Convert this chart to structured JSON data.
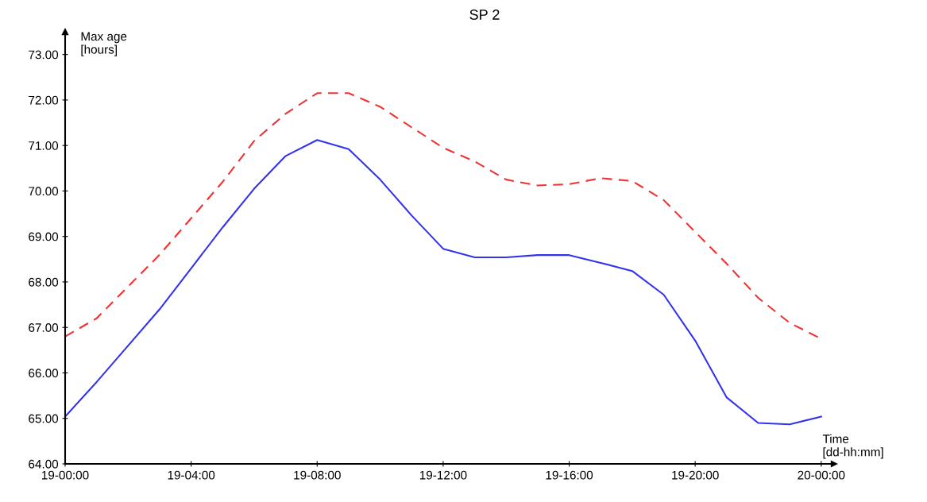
{
  "chart_data": {
    "type": "line",
    "title": "SP 2",
    "xlabel": "Time\n[dd-hh:mm]",
    "ylabel": "Max age\n[hours]",
    "categories": [
      "19-00:00",
      null,
      null,
      null,
      "19-04:00",
      null,
      null,
      null,
      "19-08:00",
      null,
      null,
      null,
      "19-12:00",
      null,
      null,
      null,
      "19-16:00",
      null,
      null,
      null,
      "19-20:00",
      null,
      null,
      null,
      "20-00:00"
    ],
    "series": [
      {
        "color": "#3333ee",
        "line_style": "solid",
        "values": [
          65.04,
          65.8,
          66.6,
          67.4,
          68.3,
          69.2,
          70.05,
          70.77,
          71.12,
          70.92,
          70.25,
          69.46,
          68.73,
          68.54,
          68.54,
          68.59,
          68.59,
          68.42,
          68.24,
          67.72,
          66.71,
          65.46,
          64.9,
          64.87,
          65.04
        ]
      },
      {
        "color": "#ee3333",
        "line_style": "dashed",
        "values": [
          66.8,
          67.2,
          67.9,
          68.6,
          69.4,
          70.2,
          71.1,
          71.7,
          72.15,
          72.15,
          71.85,
          71.4,
          70.95,
          70.65,
          70.25,
          70.12,
          70.15,
          70.28,
          70.22,
          69.8,
          69.1,
          68.4,
          67.65,
          67.1,
          66.75
        ]
      }
    ],
    "ylim": [
      64,
      73.5
    ],
    "yticks": [
      {
        "value": 64,
        "label": "64.00"
      },
      {
        "value": 65,
        "label": "65.00"
      },
      {
        "value": 66,
        "label": "66.00"
      },
      {
        "value": 67,
        "label": "67.00"
      },
      {
        "value": 68,
        "label": "68.00"
      },
      {
        "value": 69,
        "label": "69.00"
      },
      {
        "value": 70,
        "label": "70.00"
      },
      {
        "value": 71,
        "label": "71.00"
      },
      {
        "value": 72,
        "label": "72.00"
      },
      {
        "value": 73,
        "label": "73.00"
      }
    ],
    "grid": false
  }
}
